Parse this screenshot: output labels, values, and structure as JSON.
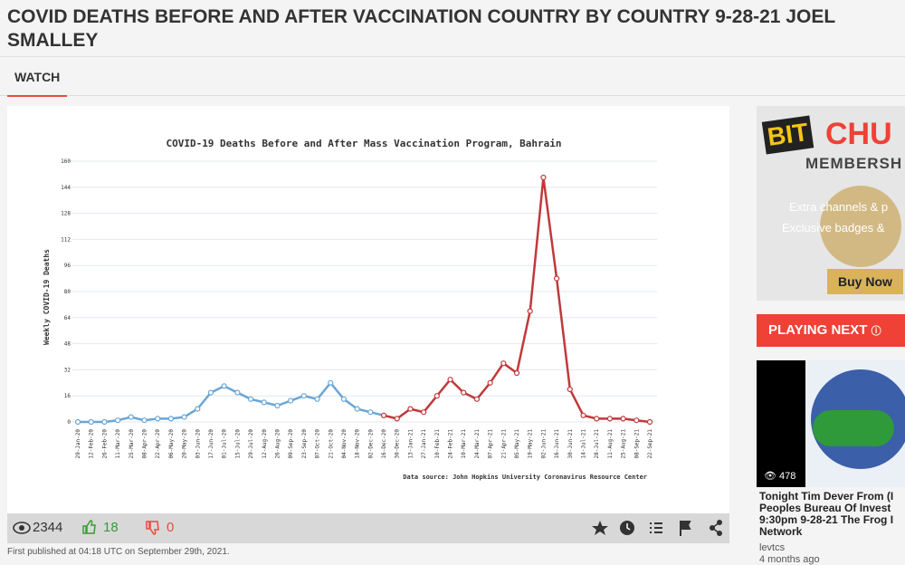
{
  "header": {
    "title": "COVID DEATHS BEFORE AND AFTER VACCINATION COUNTRY BY COUNTRY 9-28-21 JOEL SMALLEY"
  },
  "nav": {
    "tabs": [
      "WATCH"
    ]
  },
  "video": {
    "chart": {
      "type": "line",
      "title": "COVID-19 Deaths Before and After Mass Vaccination Program, Bahrain",
      "y_label": "Weekly COVID-19 Deaths",
      "source": "Data source: John Hopkins University Coronavirus Resource Center",
      "categories": [
        "29-Jan-20",
        "12-Feb-20",
        "26-Feb-20",
        "11-Mar-20",
        "25-Mar-20",
        "08-Apr-20",
        "22-Apr-20",
        "06-May-20",
        "20-May-20",
        "03-Jun-20",
        "17-Jun-20",
        "01-Jul-20",
        "15-Jul-20",
        "29-Jul-20",
        "12-Aug-20",
        "26-Aug-20",
        "09-Sep-20",
        "23-Sep-20",
        "07-Oct-20",
        "21-Oct-20",
        "04-Nov-20",
        "18-Nov-20",
        "02-Dec-20",
        "16-Dec-20",
        "30-Dec-20",
        "13-Jan-21",
        "27-Jan-21",
        "10-Feb-21",
        "24-Feb-21",
        "10-Mar-21",
        "24-Mar-21",
        "07-Apr-21",
        "21-Apr-21",
        "05-May-21",
        "19-May-21",
        "02-Jun-21",
        "16-Jun-21",
        "30-Jun-21",
        "14-Jul-21",
        "28-Jul-21",
        "11-Aug-21",
        "25-Aug-21",
        "08-Sep-21",
        "22-Sep-21"
      ],
      "series": [
        {
          "color": "#6aa6d6",
          "values": [
            0,
            0,
            0,
            1,
            3,
            1,
            2,
            2,
            3,
            8,
            18,
            22,
            18,
            14,
            12,
            10,
            13,
            16,
            14,
            24,
            14,
            8,
            6,
            4,
            null,
            null,
            null,
            null,
            null,
            null,
            null,
            null,
            null,
            null,
            null,
            null,
            null,
            null,
            null,
            null,
            null,
            null,
            null,
            null
          ]
        },
        {
          "color": "#c0393b",
          "values": [
            null,
            null,
            null,
            null,
            null,
            null,
            null,
            null,
            null,
            null,
            null,
            null,
            null,
            null,
            null,
            null,
            null,
            null,
            null,
            null,
            null,
            null,
            null,
            4,
            2,
            8,
            6,
            16,
            26,
            18,
            14,
            24,
            36,
            30,
            68,
            150,
            88,
            20,
            4,
            2,
            2,
            2,
            1,
            0
          ]
        }
      ],
      "ylim": [
        0,
        160
      ],
      "yticks": [
        0,
        16,
        32,
        48,
        64,
        80,
        96,
        112,
        128,
        144,
        160
      ],
      "grid": true
    },
    "stats": {
      "views": "2344",
      "likes": "18",
      "dislikes": "0"
    },
    "published": "First published at 04:18 UTC on September 29th, 2021."
  },
  "sidebar": {
    "ad": {
      "brand_a": "BIT",
      "brand_b": "CHU",
      "membership": "MEMBERSH",
      "line1": "Extra channels & p",
      "line2": "Exclusive badges &",
      "button": "Buy Now"
    },
    "playing_next": "PLAYING NEXT",
    "next": {
      "views": "478",
      "title": "Tonight Tim Dever From (I Peoples Bureau Of Invest 9:30pm 9-28-21 The Frog I Network",
      "channel": "levtcs",
      "age": "4 months ago"
    }
  }
}
